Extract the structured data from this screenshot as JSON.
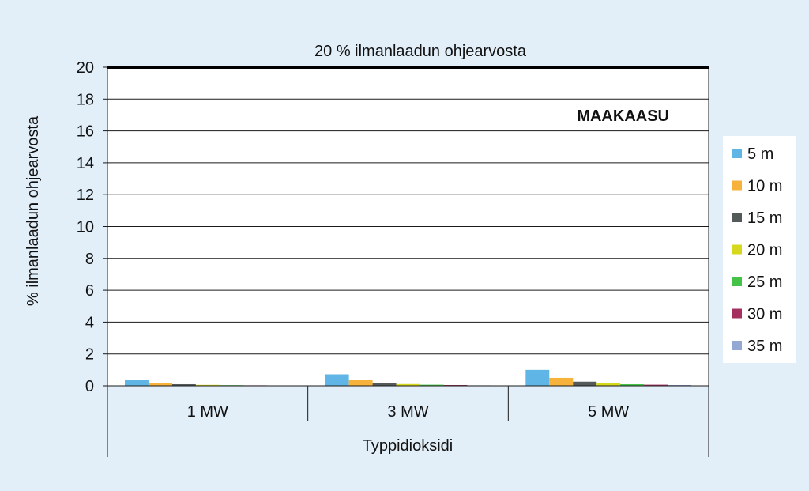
{
  "chart_data": {
    "type": "bar",
    "title": "20 % ilmanlaadun ohjearvosta",
    "annotation": "MAAKAASU",
    "xlabel": "Typpidioksidi",
    "ylabel": "% ilmanlaadun ohjearvosta",
    "ylim": [
      0,
      20
    ],
    "yticks": [
      0,
      2,
      4,
      6,
      8,
      10,
      12,
      14,
      16,
      18,
      20
    ],
    "categories": [
      "1 MW",
      "3 MW",
      "5 MW"
    ],
    "grid": true,
    "legend_position": "right",
    "reference_line": 20,
    "series": [
      {
        "name": "5 m",
        "color": "#5fb6e6",
        "values": [
          0.35,
          0.72,
          1.0
        ]
      },
      {
        "name": "10 m",
        "color": "#f6b23a",
        "values": [
          0.18,
          0.36,
          0.5
        ]
      },
      {
        "name": "15 m",
        "color": "#545a5a",
        "values": [
          0.1,
          0.18,
          0.26
        ]
      },
      {
        "name": "20 m",
        "color": "#d6d81e",
        "values": [
          0.06,
          0.11,
          0.16
        ]
      },
      {
        "name": "25 m",
        "color": "#45c248",
        "values": [
          0.04,
          0.07,
          0.1
        ]
      },
      {
        "name": "30 m",
        "color": "#a3305e",
        "values": [
          0.03,
          0.05,
          0.07
        ]
      },
      {
        "name": "35 m",
        "color": "#94a8d4",
        "values": [
          0.02,
          0.03,
          0.05
        ]
      }
    ]
  }
}
